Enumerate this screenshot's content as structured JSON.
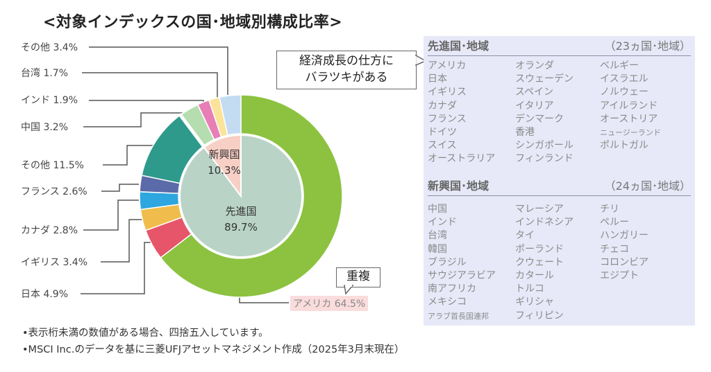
{
  "title": "<対象インデックスの国･地域別構成比率>",
  "colors": {
    "panel_bg": "#e7e9f8",
    "developed_inner": "#b9d4c7",
    "emerging_inner": "#f8cfc5",
    "america_label_bg": "#fadcdc"
  },
  "chart_data": {
    "type": "pie",
    "subtype": "nested-donut",
    "inner": [
      {
        "name": "先進国",
        "value": 89.7,
        "label": "89.7%",
        "color": "#b9d4c7"
      },
      {
        "name": "新興国",
        "value": 10.3,
        "label": "10.3%",
        "color": "#f8cfc5"
      }
    ],
    "outer": [
      {
        "name": "アメリカ",
        "value": 64.5,
        "label": "アメリカ 64.5%",
        "group": "先進国",
        "color": "#8cc23f"
      },
      {
        "name": "日本",
        "value": 4.9,
        "label": "日本 4.9%",
        "group": "先進国",
        "color": "#e6556a"
      },
      {
        "name": "イギリス",
        "value": 3.4,
        "label": "イギリス 3.4%",
        "group": "先進国",
        "color": "#f0bd4c"
      },
      {
        "name": "カナダ",
        "value": 2.8,
        "label": "カナダ 2.8%",
        "group": "先進国",
        "color": "#2ea6e0"
      },
      {
        "name": "フランス",
        "value": 2.6,
        "label": "フランス 2.6%",
        "group": "先進国",
        "color": "#5b6aa8"
      },
      {
        "name": "その他",
        "value": 11.5,
        "label": "その他 11.5%",
        "group": "先進国",
        "color": "#2e9a8c"
      },
      {
        "name": "中国",
        "value": 3.2,
        "label": "中国 3.2%",
        "group": "新興国",
        "color": "#b5ddb0"
      },
      {
        "name": "インド",
        "value": 1.9,
        "label": "インド 1.9%",
        "group": "新興国",
        "color": "#e77fb6"
      },
      {
        "name": "台湾",
        "value": 1.7,
        "label": "台湾 1.7%",
        "group": "新興国",
        "color": "#fbe49a"
      },
      {
        "name": "その他",
        "value": 3.4,
        "label": "その他 3.4%",
        "group": "新興国",
        "color": "#c4dcf2"
      }
    ]
  },
  "callouts": {
    "variation": [
      "経済成長の仕方に",
      "バラツキがある"
    ],
    "overlap": "重複"
  },
  "panel": {
    "developed": {
      "heading": "先進国･地域",
      "count": "（23ヵ国･地域）",
      "columns": [
        [
          "アメリカ",
          "日本",
          "イギリス",
          "カナダ",
          "フランス",
          "ドイツ",
          "スイス",
          "オーストラリア"
        ],
        [
          "オランダ",
          "スウェーデン",
          "スペイン",
          "イタリア",
          "デンマーク",
          "香港",
          "シンガポール",
          "フィンランド"
        ],
        [
          "ベルギー",
          "イスラエル",
          "ノルウェー",
          "アイルランド",
          "オーストリア",
          "ニュージーランド",
          "ポルトガル"
        ]
      ]
    },
    "emerging": {
      "heading": "新興国･地域",
      "count": "（24ヵ国･地域）",
      "columns": [
        [
          "中国",
          "インド",
          "台湾",
          "韓国",
          "ブラジル",
          "サウジアラビア",
          "南アフリカ",
          "メキシコ",
          "アラブ首長国連邦"
        ],
        [
          "マレーシア",
          "インドネシア",
          "タイ",
          "ポーランド",
          "クウェート",
          "カタール",
          "トルコ",
          "ギリシャ",
          "フィリピン"
        ],
        [
          "チリ",
          "ペルー",
          "ハンガリー",
          "チェコ",
          "コロンビア",
          "エジプト"
        ]
      ]
    }
  },
  "notes": [
    "•表示桁未満の数値がある場合、四捨五入しています。",
    "•MSCI Inc.のデータを基に三菱UFJアセットマネジメント作成（2025年3月末現在）"
  ]
}
